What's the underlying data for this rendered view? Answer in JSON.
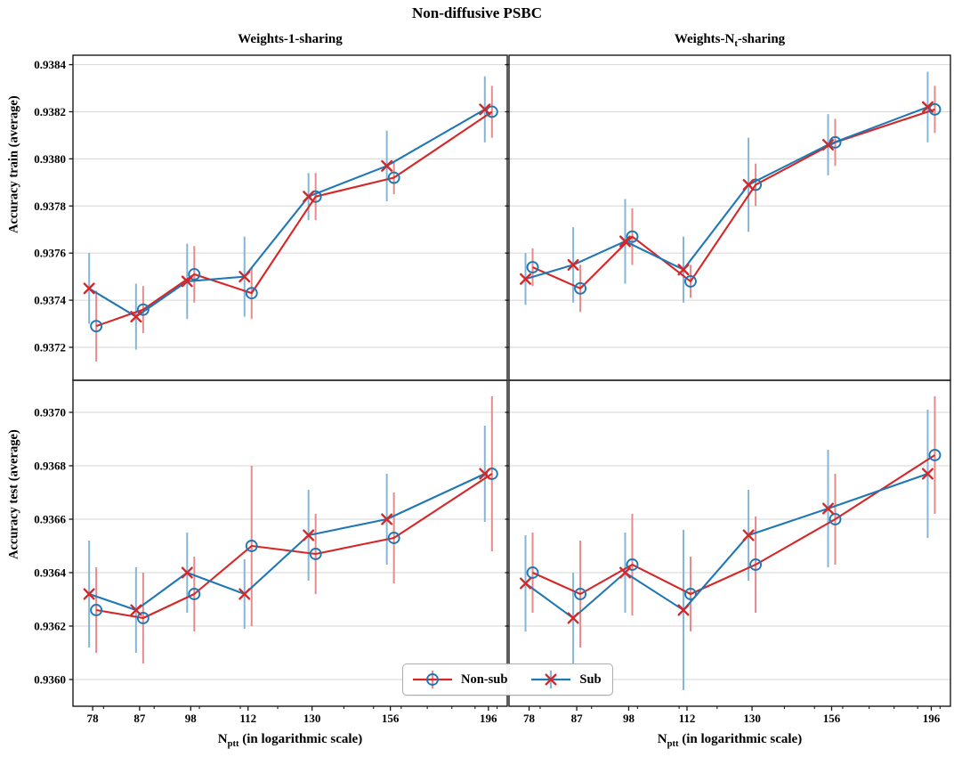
{
  "suptitle": "Non-diffusive PSBC",
  "axes_meta": {
    "left_col_title": "Weights-1-sharing",
    "right_col_title": {
      "pre": "Weights-N",
      "sub": "t",
      "post": "-sharing"
    },
    "ylabel_top": "Accuracy train (average)",
    "ylabel_bottom": "Accuracy test (average)",
    "xlabel": {
      "pre": "N",
      "sub": "ptt",
      "post": " (in logarithmic scale)"
    },
    "x_tick_labels": [
      "78",
      "87",
      "98",
      "112",
      "130",
      "156",
      "196"
    ],
    "x_minor_ticks": [
      80,
      90,
      100,
      110,
      120,
      140,
      150,
      160,
      170,
      180,
      190,
      200
    ],
    "y_tick_labels_top": [
      "0.9372",
      "0.9374",
      "0.9376",
      "0.9378",
      "0.9380",
      "0.9382",
      "0.9384"
    ],
    "y_tick_labels_bottom": [
      "0.9360",
      "0.9362",
      "0.9364",
      "0.9366",
      "0.9368",
      "0.9370"
    ]
  },
  "colors": {
    "grid": "#d6d6d6",
    "spine": "#1a1a1a",
    "text": "#000000"
  },
  "series_styles": {
    "non_sub": {
      "line_color": "#d62728",
      "marker": "circle",
      "marker_color": "#1f77b4",
      "errorbar_color": "#e88a8b"
    },
    "sub": {
      "line_color": "#1f77b4",
      "marker": "x",
      "marker_color": "#d62728",
      "errorbar_color": "#85b6d7"
    }
  },
  "legend": {
    "position": "lower center",
    "items": [
      {
        "label": "Non-sub",
        "style": "non_sub"
      },
      {
        "label": "Sub",
        "style": "sub"
      }
    ]
  },
  "chart_data": [
    {
      "type": "line",
      "title": "Weights-1-sharing",
      "row": "train",
      "col": "weights-1",
      "xlabel": "",
      "ylabel": "Accuracy train (average)",
      "xscale": "log",
      "x": [
        78,
        87,
        98,
        112,
        130,
        156,
        196
      ],
      "xlim": [
        74.5,
        204.8
      ],
      "ylim": [
        0.93706,
        0.93844
      ],
      "yticks": [
        0.9372,
        0.9374,
        0.9376,
        0.9378,
        0.938,
        0.9382,
        0.9384
      ],
      "grid": "horizontal",
      "series": [
        {
          "name": "Non-sub",
          "style": "non_sub",
          "values": [
            0.93729,
            0.93736,
            0.93751,
            0.93743,
            0.93784,
            0.93792,
            0.9382
          ],
          "yerr": [
            0.00015,
            0.0001,
            0.00012,
            0.00011,
            0.0001,
            7e-05,
            0.00011
          ]
        },
        {
          "name": "Sub",
          "style": "sub",
          "values": [
            0.93745,
            0.93733,
            0.93748,
            0.9375,
            0.93784,
            0.93797,
            0.93821
          ],
          "yerr": [
            0.00015,
            0.00014,
            0.00016,
            0.00017,
            0.0001,
            0.00015,
            0.00014
          ]
        }
      ]
    },
    {
      "type": "line",
      "title": "Weights-N_t-sharing",
      "row": "train",
      "col": "weights-Nt",
      "xlabel": "",
      "ylabel": "",
      "xscale": "log",
      "x": [
        78,
        87,
        98,
        112,
        130,
        156,
        196
      ],
      "xlim": [
        74.5,
        204.8
      ],
      "ylim": [
        0.93706,
        0.93844
      ],
      "yticks": [
        0.9372,
        0.9374,
        0.9376,
        0.9378,
        0.938,
        0.9382,
        0.9384
      ],
      "grid": "horizontal",
      "series": [
        {
          "name": "Non-sub",
          "style": "non_sub",
          "values": [
            0.93754,
            0.93745,
            0.93767,
            0.93748,
            0.93789,
            0.93807,
            0.93821
          ],
          "yerr": [
            8e-05,
            0.0001,
            0.00012,
            7e-05,
            9e-05,
            0.0001,
            0.0001
          ]
        },
        {
          "name": "Sub",
          "style": "sub",
          "values": [
            0.93749,
            0.93755,
            0.93765,
            0.93753,
            0.93789,
            0.93806,
            0.93822
          ],
          "yerr": [
            0.00011,
            0.00016,
            0.00018,
            0.00014,
            0.0002,
            0.00013,
            0.00015
          ]
        }
      ]
    },
    {
      "type": "line",
      "title": "",
      "row": "test",
      "col": "weights-1",
      "xlabel": "N_ptt (in logarithmic scale)",
      "ylabel": "Accuracy test (average)",
      "xscale": "log",
      "x": [
        78,
        87,
        98,
        112,
        130,
        156,
        196
      ],
      "xlim": [
        74.5,
        204.8
      ],
      "ylim": [
        0.9359,
        0.93712
      ],
      "yticks": [
        0.936,
        0.9362,
        0.9364,
        0.9366,
        0.9368,
        0.937
      ],
      "grid": "horizontal",
      "series": [
        {
          "name": "Non-sub",
          "style": "non_sub",
          "values": [
            0.93626,
            0.93623,
            0.93632,
            0.9365,
            0.93647,
            0.93653,
            0.93677
          ],
          "yerr": [
            0.00016,
            0.00017,
            0.00014,
            0.0003,
            0.00015,
            0.00017,
            0.00029
          ]
        },
        {
          "name": "Sub",
          "style": "sub",
          "values": [
            0.93632,
            0.93626,
            0.9364,
            0.93632,
            0.93654,
            0.9366,
            0.93677
          ],
          "yerr": [
            0.0002,
            0.00016,
            0.00015,
            0.00013,
            0.00017,
            0.00017,
            0.00018
          ]
        }
      ]
    },
    {
      "type": "line",
      "title": "",
      "row": "test",
      "col": "weights-Nt",
      "xlabel": "N_ptt (in logarithmic scale)",
      "ylabel": "",
      "xscale": "log",
      "x": [
        78,
        87,
        98,
        112,
        130,
        156,
        196
      ],
      "xlim": [
        74.5,
        204.8
      ],
      "ylim": [
        0.9359,
        0.93712
      ],
      "yticks": [
        0.936,
        0.9362,
        0.9364,
        0.9366,
        0.9368,
        0.937
      ],
      "grid": "horizontal",
      "series": [
        {
          "name": "Non-sub",
          "style": "non_sub",
          "values": [
            0.9364,
            0.93632,
            0.93643,
            0.93632,
            0.93643,
            0.9366,
            0.93684
          ],
          "yerr": [
            0.00015,
            0.0002,
            0.00019,
            0.00014,
            0.00018,
            0.00017,
            0.00022
          ]
        },
        {
          "name": "Sub",
          "style": "sub",
          "values": [
            0.93636,
            0.93623,
            0.9364,
            0.93626,
            0.93654,
            0.93664,
            0.93677
          ],
          "yerr": [
            0.00018,
            0.00017,
            0.00015,
            0.0003,
            0.00017,
            0.00022,
            0.00024
          ]
        }
      ]
    }
  ]
}
